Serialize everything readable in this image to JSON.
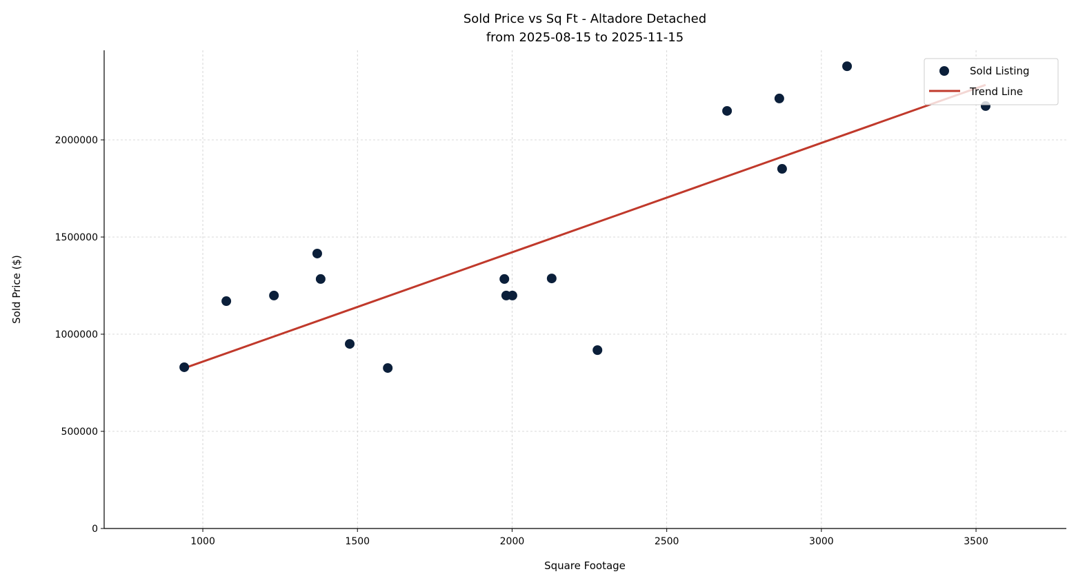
{
  "chart_data": {
    "type": "scatter",
    "title": "Sold Price vs Sq Ft - Altadore Detached",
    "subtitle": "from 2025-08-15 to 2025-11-15",
    "xlabel": "Square Footage",
    "ylabel": "Sold Price ($)",
    "xlim": [
      681,
      3792
    ],
    "ylim": [
      0,
      2461000
    ],
    "xticks": [
      1000,
      1500,
      2000,
      2500,
      3000,
      3500
    ],
    "yticks": [
      0,
      500000,
      1000000,
      1500000,
      2000000
    ],
    "grid": true,
    "legend_position": "top-right",
    "colors": {
      "points": "#0b1f3a",
      "trend": "#c0392b"
    },
    "series": [
      {
        "name": "Sold Listing",
        "kind": "scatter",
        "x": [
          940,
          1076,
          1230,
          1370,
          1381,
          1475,
          1598,
          1975,
          1981,
          2001,
          2128,
          2276,
          2695,
          2864,
          2873,
          3083,
          3531
        ],
        "y": [
          830000,
          1170000,
          1199000,
          1415000,
          1284000,
          950000,
          826000,
          1284000,
          1199000,
          1199000,
          1287000,
          918000,
          2149000,
          2213000,
          1851000,
          2379000,
          2174000
        ]
      },
      {
        "name": "Trend Line",
        "kind": "line",
        "x": [
          940,
          3531
        ],
        "y": [
          825000,
          2283000
        ]
      }
    ]
  }
}
